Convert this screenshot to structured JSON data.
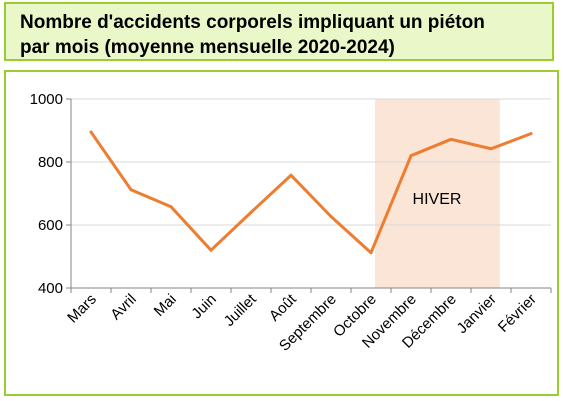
{
  "header": {
    "title_line1": "Nombre d'accidents corporels impliquant un piéton",
    "title_line2": "par mois (moyenne mensuelle 2020-2024)"
  },
  "colors": {
    "line": "#ed7d31",
    "highlight": "#fbe5d6",
    "border": "#9acd32",
    "title_bg": "#eaf7c8",
    "grid": "#d9d9d9"
  },
  "chart_data": {
    "type": "line",
    "title": "Nombre d'accidents corporels impliquant un piéton par mois (moyenne mensuelle 2020-2024)",
    "categories": [
      "Mars",
      "Avril",
      "Mai",
      "Juin",
      "Juillet",
      "Août",
      "Septembre",
      "Octobre",
      "Novembre",
      "Décembre",
      "Janvier",
      "Février"
    ],
    "series": [
      {
        "values": [
          895,
          712,
          658,
          520,
          640,
          758,
          627,
          512,
          820,
          872,
          842,
          890
        ]
      }
    ],
    "ylim": [
      400,
      1000
    ],
    "yticks": [
      400,
      600,
      800,
      1000
    ],
    "grid": true,
    "annotation": {
      "label": "HIVER",
      "from": "Novembre",
      "to": "Janvier"
    }
  }
}
